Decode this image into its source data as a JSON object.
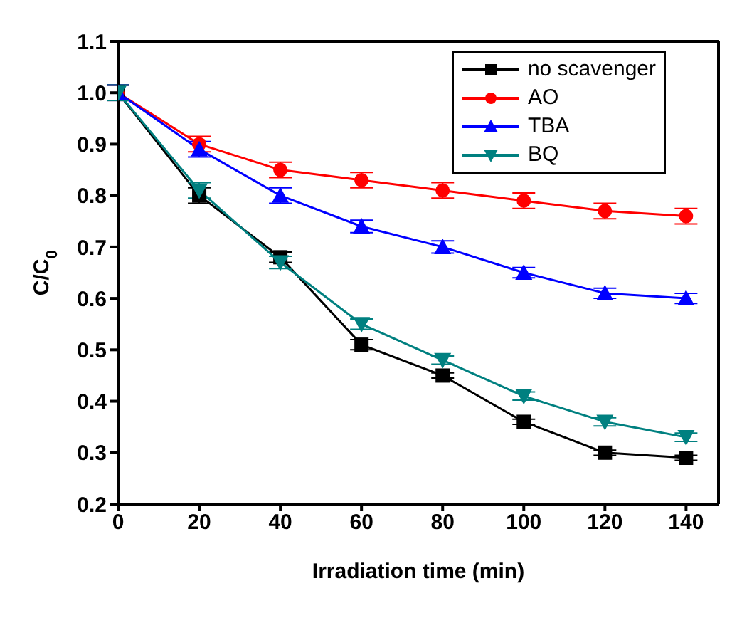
{
  "chart_data": {
    "type": "line",
    "xlabel": "Irradiation time (min)",
    "ylabel": "C/C$_{0}$",
    "x": [
      0,
      20,
      40,
      60,
      80,
      100,
      120,
      140
    ],
    "xlim": [
      0,
      148
    ],
    "xticks": [
      0,
      20,
      40,
      60,
      80,
      100,
      120,
      140
    ],
    "ylim": [
      0.2,
      1.1
    ],
    "yticks": [
      0.2,
      0.3,
      0.4,
      0.5,
      0.6,
      0.7,
      0.8,
      0.9,
      {
        "value": 1,
        "label": "1.0"
      },
      1.1
    ],
    "grid": false,
    "legend": "top right",
    "line_style": "solid",
    "series": [
      {
        "name": "no scavenger",
        "color": "#000000",
        "marker": "square",
        "values": [
          1.0,
          0.8,
          0.68,
          0.51,
          0.45,
          0.36,
          0.3,
          0.29
        ],
        "errors": [
          0.015,
          0.015,
          0.01,
          0.01,
          0.005,
          0.005,
          0.005,
          0.005
        ]
      },
      {
        "name": "AO",
        "color": "#ff0000",
        "marker": "circle",
        "values": [
          1.0,
          0.9,
          0.85,
          0.83,
          0.81,
          0.79,
          0.77,
          0.76
        ],
        "errors": [
          0.015,
          0.015,
          0.015,
          0.015,
          0.015,
          0.015,
          0.015,
          0.015
        ]
      },
      {
        "name": "TBA",
        "color": "#0000ff",
        "marker": "triangle",
        "values": [
          1.0,
          0.89,
          0.8,
          0.74,
          0.7,
          0.65,
          0.61,
          0.6
        ],
        "errors": [
          0.015,
          0.015,
          0.015,
          0.012,
          0.012,
          0.01,
          0.01,
          0.01
        ]
      },
      {
        "name": "BQ",
        "color": "#008080",
        "marker": "triangle-down",
        "values": [
          1.0,
          0.81,
          0.67,
          0.55,
          0.48,
          0.41,
          0.36,
          0.33
        ],
        "errors": [
          0.015,
          0.015,
          0.012,
          0.01,
          0.008,
          0.008,
          0.008,
          0.008
        ]
      }
    ]
  }
}
